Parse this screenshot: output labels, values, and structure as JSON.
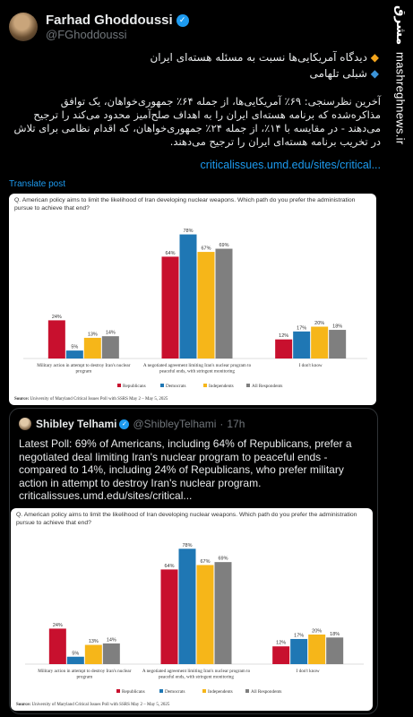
{
  "watermark": {
    "logo": "مشرق",
    "site": "mashreghnews.ir"
  },
  "tweet": {
    "display_name": "Farhad Ghoddoussi",
    "handle": "@FGhoddoussi",
    "line1": "دیدگاه آمریکایی‌ها نسبت به مسئله هسته‌ای ایران",
    "line2": "شبلی تلهامی",
    "paragraph": "آخرین نظرسنجی: ۶۹٪ آمریکایی‌ها، از جمله ۶۴٪ جمهوری‌خواهان، یک توافق مذاکره‌شده که برنامه هسته‌ای ایران را به اهداف صلح‌آمیز محدود می‌کند را ترجیح می‌دهند - در مقایسه با ۱۴٪، از جمله ۲۴٪ جمهوری‌خواهان، که اقدام نظامی برای تلاش در تخریب برنامه هسته‌ای ایران را ترجیح می‌دهند.",
    "link": "criticalissues.umd.edu/sites/critical...",
    "translate": "Translate post"
  },
  "quote": {
    "display_name": "Shibley Telhami",
    "handle": "@ShibleyTelhami",
    "sep": "·",
    "time": "17h",
    "text": "Latest Poll: 69% of Americans, including 64% of Republicans, prefer a negotiated deal limiting Iran's nuclear program to peaceful ends - compared to 14%, including 24% of Republicans, who prefer military action in attempt to destroy Iran's nuclear program.",
    "link": "criticalissues.umd.edu/sites/critical..."
  },
  "chart_data": {
    "type": "bar",
    "title": "Q. American policy aims to limit the likelihood of Iran developing nuclear weapons. Which path do you prefer the administration pursue to achieve that end?",
    "categories": [
      "Military action in attempt to destroy Iran's nuclear program",
      "A negotiated agreement limiting Iran's nuclear program to peaceful ends, with stringent monitoring",
      "I don't know"
    ],
    "series": [
      {
        "name": "Republicans",
        "color": "#c8102e",
        "values": [
          24,
          64,
          12
        ]
      },
      {
        "name": "Democrats",
        "color": "#1f77b4",
        "values": [
          5,
          78,
          17
        ]
      },
      {
        "name": "Independents",
        "color": "#f6b619",
        "values": [
          13,
          67,
          20
        ]
      },
      {
        "name": "All Respondents",
        "color": "#7f7f7f",
        "values": [
          14,
          69,
          18
        ]
      }
    ],
    "ylim": [
      0,
      80
    ],
    "legend": "bottom",
    "source_label": "Source:",
    "source": "University of Maryland Critical Issues Poll with SSRS May 2 – May 5, 2025"
  }
}
